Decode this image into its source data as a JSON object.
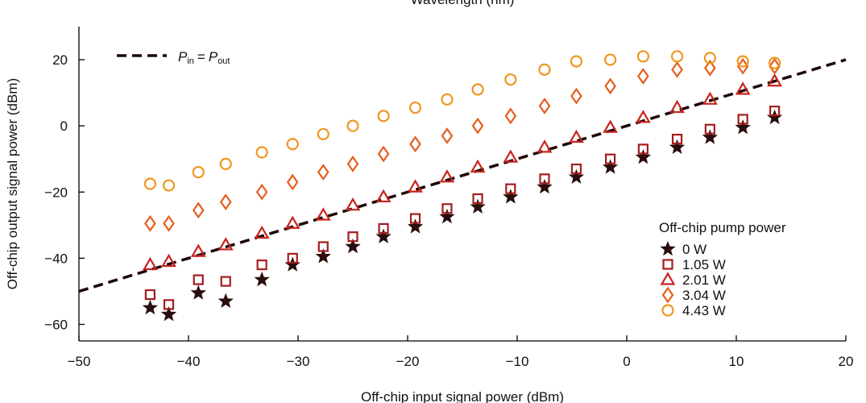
{
  "chart_data": {
    "type": "scatter",
    "top_label": "Wavelength (nm)",
    "xlabel": "Off-chip input signal power (dBm)",
    "ylabel": "Off-chip output signal power (dBm)",
    "xlim": [
      -50,
      20
    ],
    "ylim": [
      -65,
      30
    ],
    "x_ticks": [
      -50,
      -40,
      -30,
      -20,
      -10,
      0,
      10,
      20
    ],
    "x_tick_labels": [
      "−50",
      "−40",
      "−30",
      "−20",
      "−10",
      "0",
      "10",
      "20"
    ],
    "y_ticks": [
      -60,
      -40,
      -20,
      0,
      20
    ],
    "y_tick_labels": [
      "−60",
      "−40",
      "−20",
      "0",
      "20"
    ],
    "reference_line": {
      "label_main": "P",
      "label_in_sub": "in",
      "label_equals": "=",
      "label_out_sub": "out",
      "points": [
        [
          -50,
          -50
        ],
        [
          20,
          20
        ]
      ],
      "color": "#1c0606"
    },
    "legend": {
      "title": "Off-chip pump power",
      "position": "bottom-right"
    },
    "x": [
      -43.5,
      -41.8,
      -39.1,
      -36.6,
      -33.3,
      -30.5,
      -27.7,
      -25.0,
      -22.2,
      -19.3,
      -16.4,
      -13.6,
      -10.6,
      -7.5,
      -4.6,
      -1.5,
      1.5,
      4.6,
      7.6,
      10.6,
      13.5
    ],
    "series": [
      {
        "name": "0 W",
        "marker": "star",
        "color": "#2a0d0d",
        "values": [
          -55,
          -57,
          -50.5,
          -53,
          -46.5,
          -42,
          -39.5,
          -36.5,
          -33.5,
          -30.5,
          -27.5,
          -24.5,
          -21.5,
          -18.5,
          -15.5,
          -12.5,
          -9.5,
          -6.5,
          -3.5,
          -0.5,
          2.5
        ]
      },
      {
        "name": "1.05 W",
        "marker": "square",
        "color": "#a51d1d",
        "values": [
          -51,
          -54,
          -46.5,
          -47,
          -42,
          -40,
          -36.5,
          -33.5,
          -31,
          -28,
          -25,
          -22,
          -19,
          -16,
          -13,
          -10,
          -7,
          -4,
          -1,
          2,
          4.5
        ]
      },
      {
        "name": "2.01 W",
        "marker": "triangle",
        "color": "#c8231c",
        "values": [
          -42,
          -41,
          -38,
          -36,
          -32.5,
          -29.5,
          -27,
          -24,
          -21.5,
          -18.5,
          -15.5,
          -12.5,
          -9.5,
          -6.5,
          -3.5,
          -0.5,
          2.5,
          5.5,
          8,
          11,
          13.5
        ]
      },
      {
        "name": "3.04 W",
        "marker": "diamond",
        "color": "#e65e1e",
        "values": [
          -29.5,
          -29.5,
          -25.5,
          -23,
          -20,
          -17,
          -14,
          -11.5,
          -8.5,
          -5.5,
          -3,
          0,
          3,
          6,
          9,
          12,
          15,
          17,
          17.5,
          18,
          18
        ]
      },
      {
        "name": "4.43 W",
        "marker": "circle",
        "color": "#f0961e",
        "values": [
          -17.5,
          -18,
          -14,
          -11.5,
          -8,
          -5.5,
          -2.5,
          0,
          3,
          5.5,
          8,
          11,
          14,
          17,
          19.5,
          20,
          21,
          21,
          20.5,
          19.5,
          19
        ]
      }
    ]
  }
}
